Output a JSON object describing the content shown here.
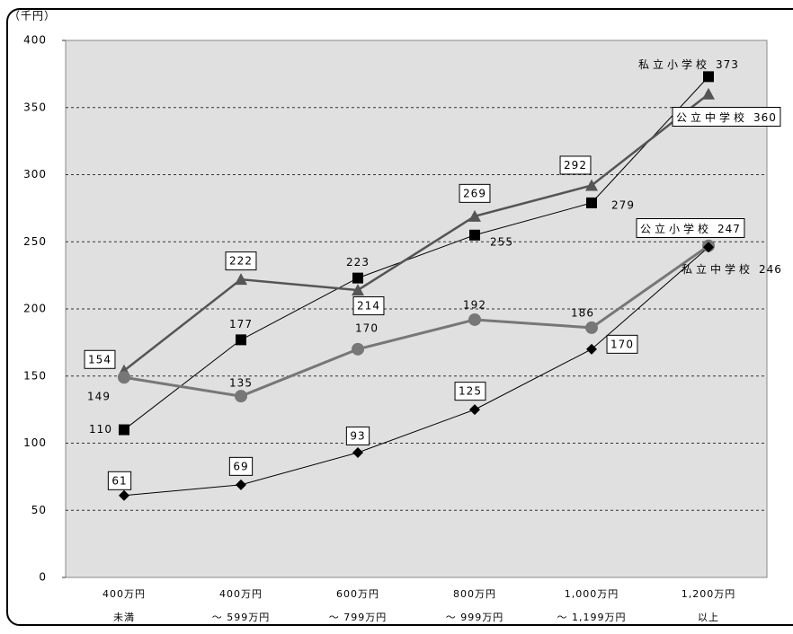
{
  "chart_data": {
    "type": "line",
    "y_axis_label": "（千円）",
    "categories": [
      [
        "400万円",
        "未満"
      ],
      [
        "400万円",
        "～ 599万円"
      ],
      [
        "600万円",
        "～ 799万円"
      ],
      [
        "800万円",
        "～ 999万円"
      ],
      [
        "1,000万円",
        "～ 1,199万円"
      ],
      [
        "1,200万円",
        "以上"
      ]
    ],
    "ylim": [
      0,
      400
    ],
    "yticks": [
      0,
      50,
      100,
      150,
      200,
      250,
      300,
      350,
      400
    ],
    "grid": true,
    "series": [
      {
        "name": "私立小学校",
        "color": "#000000",
        "marker": "square",
        "values": [
          110,
          177,
          223,
          255,
          279,
          373
        ]
      },
      {
        "name": "公立中学校",
        "color": "#555555",
        "marker": "triangle",
        "values": [
          154,
          222,
          214,
          269,
          292,
          360
        ]
      },
      {
        "name": "公立小学校",
        "color": "#777777",
        "marker": "circle",
        "values": [
          149,
          135,
          170,
          192,
          186,
          247
        ]
      },
      {
        "name": "私立中学校",
        "color": "#000000",
        "marker": "diamond",
        "values": [
          61,
          69,
          93,
          125,
          170,
          246
        ]
      }
    ]
  }
}
